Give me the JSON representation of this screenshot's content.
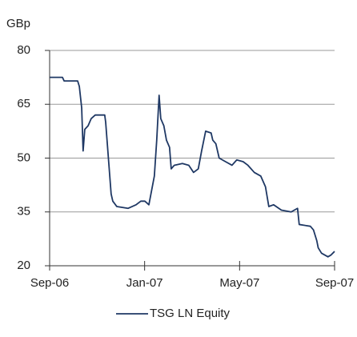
{
  "chart_data": {
    "type": "line",
    "y_label": "GBp",
    "xlim": [
      0,
      12
    ],
    "xticks": [
      {
        "value": 0,
        "label": "Sep-06"
      },
      {
        "value": 4,
        "label": "Jan-07"
      },
      {
        "value": 8,
        "label": "May-07"
      },
      {
        "value": 12,
        "label": "Sep-07"
      }
    ],
    "ylim": [
      20,
      80
    ],
    "yticks": [
      20,
      35,
      50,
      65,
      80
    ],
    "grid": true,
    "legend": "bottom",
    "series": [
      {
        "name": "TSG LN Equity",
        "color": "#1f3864",
        "x": [
          0,
          0.54,
          0.61,
          1.18,
          1.25,
          1.35,
          1.41,
          1.48,
          1.62,
          1.75,
          1.92,
          2.32,
          2.36,
          2.59,
          2.66,
          2.83,
          3.3,
          3.64,
          3.84,
          4.01,
          4.18,
          4.41,
          4.51,
          4.61,
          4.68,
          4.81,
          4.92,
          5.05,
          5.12,
          5.25,
          5.59,
          5.86,
          6.06,
          6.26,
          6.4,
          6.57,
          6.8,
          6.87,
          7.0,
          7.14,
          7.41,
          7.68,
          7.88,
          8.15,
          8.35,
          8.62,
          8.89,
          9.09,
          9.23,
          9.43,
          9.76,
          10.17,
          10.44,
          10.51,
          10.98,
          11.11,
          11.25,
          11.31,
          11.45,
          11.72,
          11.85,
          12
        ],
        "values": [
          72.5,
          72.5,
          71.5,
          71.5,
          70,
          64,
          52,
          58,
          59,
          61,
          62,
          62,
          60,
          40,
          38,
          36.5,
          36,
          37,
          38,
          38,
          37,
          45,
          55,
          67.5,
          61,
          59,
          55,
          53,
          47,
          48,
          48.5,
          48,
          46,
          47,
          52,
          57.5,
          57,
          55,
          54,
          50,
          49,
          48,
          49.5,
          49,
          48,
          46,
          45,
          42,
          36.5,
          37,
          35.5,
          35,
          36,
          31.5,
          31,
          30,
          27,
          25,
          23.5,
          22.5,
          23,
          24
        ]
      }
    ]
  }
}
